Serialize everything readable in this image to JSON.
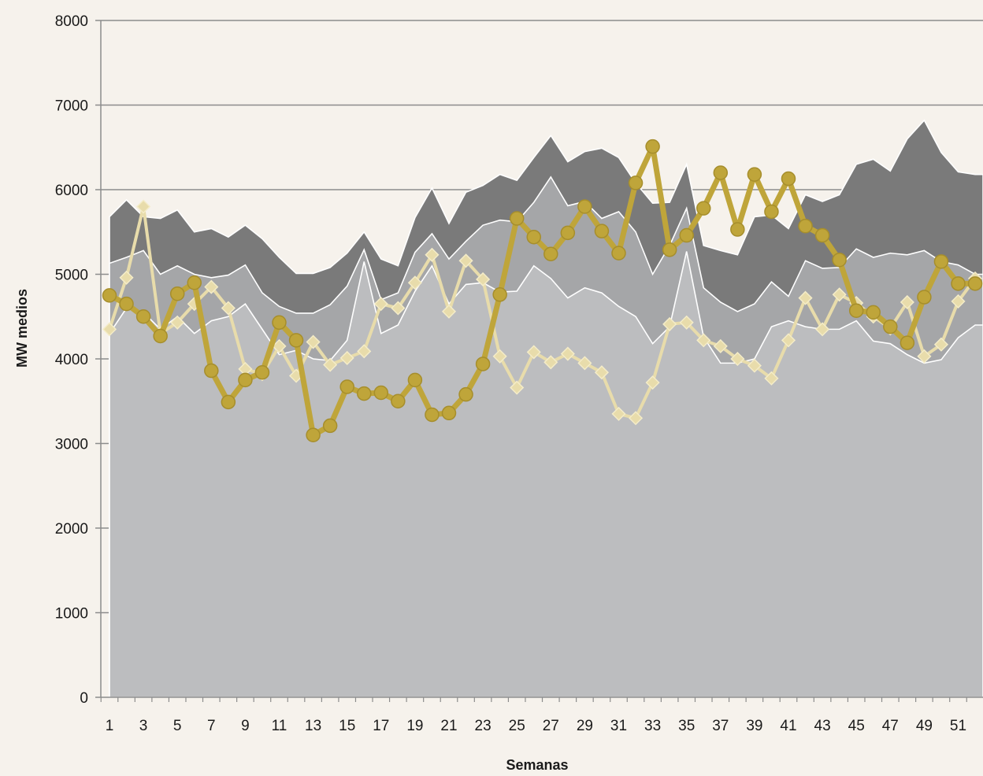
{
  "chart_data": {
    "type": "area",
    "xlabel": "Semanas",
    "ylabel": "MW medios",
    "ylim": [
      0,
      8000
    ],
    "yticks": [
      0,
      1000,
      2000,
      3000,
      4000,
      5000,
      6000,
      7000,
      8000
    ],
    "x": [
      1,
      2,
      3,
      4,
      5,
      6,
      7,
      8,
      9,
      10,
      11,
      12,
      13,
      14,
      15,
      16,
      17,
      18,
      19,
      20,
      21,
      22,
      23,
      24,
      25,
      26,
      27,
      28,
      29,
      30,
      31,
      32,
      33,
      34,
      35,
      36,
      37,
      38,
      39,
      40,
      41,
      42,
      43,
      44,
      45,
      46,
      47,
      48,
      49,
      50,
      51,
      52
    ],
    "xtick_labels": [
      "1",
      "3",
      "5",
      "7",
      "9",
      "11",
      "13",
      "15",
      "17",
      "19",
      "21",
      "23",
      "25",
      "27",
      "29",
      "31",
      "33",
      "35",
      "37",
      "39",
      "41",
      "43",
      "45",
      "47",
      "49",
      "51"
    ],
    "grid": "horizontal",
    "legend": "none",
    "series": [
      {
        "kind": "area",
        "color": "#7a7a7a",
        "values": [
          5680,
          5880,
          5680,
          5660,
          5760,
          5500,
          5540,
          5440,
          5580,
          5420,
          5200,
          5010,
          5010,
          5080,
          5250,
          5500,
          5180,
          5100,
          5670,
          6020,
          5600,
          5970,
          6050,
          6180,
          6110,
          6380,
          6640,
          6330,
          6450,
          6490,
          6380,
          6080,
          5840,
          5850,
          6300,
          5340,
          5280,
          5230,
          5680,
          5700,
          5540,
          5940,
          5860,
          5940,
          6300,
          6360,
          6220,
          6600,
          6820,
          6440,
          6210,
          6180
        ]
      },
      {
        "kind": "area",
        "color": "#a5a6a8",
        "values": [
          5130,
          5200,
          5280,
          5000,
          5100,
          5000,
          4960,
          4990,
          5110,
          4780,
          4620,
          4540,
          4540,
          4640,
          4860,
          5290,
          4700,
          4780,
          5260,
          5480,
          5180,
          5390,
          5580,
          5640,
          5620,
          5850,
          6150,
          5810,
          5860,
          5660,
          5740,
          5500,
          5000,
          5340,
          5780,
          4840,
          4670,
          4560,
          4650,
          4910,
          4740,
          5160,
          5070,
          5080,
          5300,
          5200,
          5250,
          5230,
          5280,
          5150,
          5110,
          5000
        ]
      },
      {
        "kind": "area",
        "color": "#bcbdbf",
        "values": [
          4300,
          4600,
          4550,
          4350,
          4500,
          4300,
          4450,
          4500,
          4650,
          4350,
          4050,
          4100,
          4000,
          3980,
          4220,
          5150,
          4300,
          4400,
          4800,
          5100,
          4650,
          4880,
          4900,
          4790,
          4800,
          5100,
          4950,
          4720,
          4840,
          4780,
          4620,
          4500,
          4180,
          4380,
          5270,
          4260,
          3950,
          3950,
          4000,
          4380,
          4450,
          4380,
          4350,
          4350,
          4450,
          4210,
          4180,
          4050,
          3950,
          3990,
          4250,
          4400
        ]
      },
      {
        "kind": "line",
        "color": "#e8dcab",
        "marker": "diamond",
        "values": [
          4350,
          4960,
          5800,
          4300,
          4430,
          4650,
          4850,
          4600,
          3880,
          3820,
          4150,
          3800,
          4200,
          3930,
          4010,
          4090,
          4650,
          4600,
          4900,
          5230,
          4560,
          5160,
          4940,
          4030,
          3660,
          4080,
          3960,
          4060,
          3950,
          3840,
          3350,
          3300,
          3720,
          4410,
          4430,
          4220,
          4150,
          4000,
          3920,
          3770,
          4220,
          4720,
          4350,
          4760,
          4660,
          4500,
          4360,
          4670,
          4030,
          4170,
          4680,
          4950
        ]
      },
      {
        "kind": "line",
        "color": "#bfa53a",
        "marker": "circle",
        "values": [
          4750,
          4650,
          4500,
          4270,
          4770,
          4900,
          3860,
          3490,
          3750,
          3840,
          4430,
          4220,
          3100,
          3210,
          3670,
          3590,
          3600,
          3500,
          3750,
          3340,
          3360,
          3580,
          3940,
          4760,
          5660,
          5440,
          5240,
          5490,
          5800,
          5510,
          5250,
          6080,
          6510,
          5290,
          5460,
          5780,
          6200,
          5530,
          6180,
          5740,
          6130,
          5570,
          5460,
          5170,
          4570,
          4550,
          4380,
          4190,
          4730,
          5150,
          4890,
          4890
        ]
      }
    ]
  }
}
